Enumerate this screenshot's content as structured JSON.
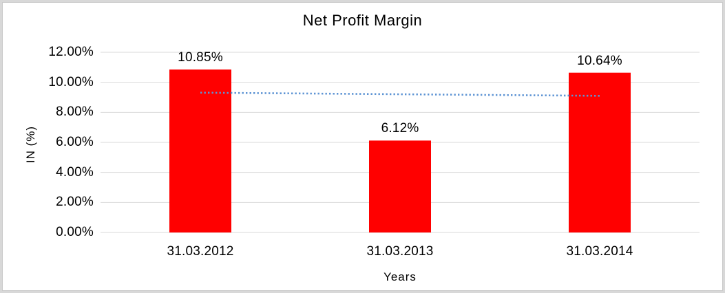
{
  "frame": {
    "background_color": "#FFFFFF",
    "border_color": "#D8D8D8"
  },
  "chart_data": {
    "type": "bar",
    "title": "Net Profit Margin",
    "xlabel": "Years",
    "ylabel": "IN (%)",
    "categories": [
      "31.03.2012",
      "31.03.2013",
      "31.03.2014"
    ],
    "values": [
      10.85,
      6.12,
      10.64
    ],
    "data_labels": [
      "10.85%",
      "6.12%",
      "10.64%"
    ],
    "ylim": [
      0,
      12
    ],
    "ytick_values": [
      0,
      2,
      4,
      6,
      8,
      10,
      12
    ],
    "ytick_labels": [
      "0.00%",
      "2.00%",
      "4.00%",
      "6.00%",
      "8.00%",
      "10.00%",
      "12.00%"
    ],
    "grid": true,
    "gridline_color": "#D9D9D9",
    "bar_color": "#FF0000",
    "legend_position": "none",
    "text_color": "#000000",
    "trendline": {
      "type": "linear",
      "style": "dotted",
      "color": "#5E94D4",
      "start_value": 9.31,
      "end_value": 9.1
    }
  }
}
